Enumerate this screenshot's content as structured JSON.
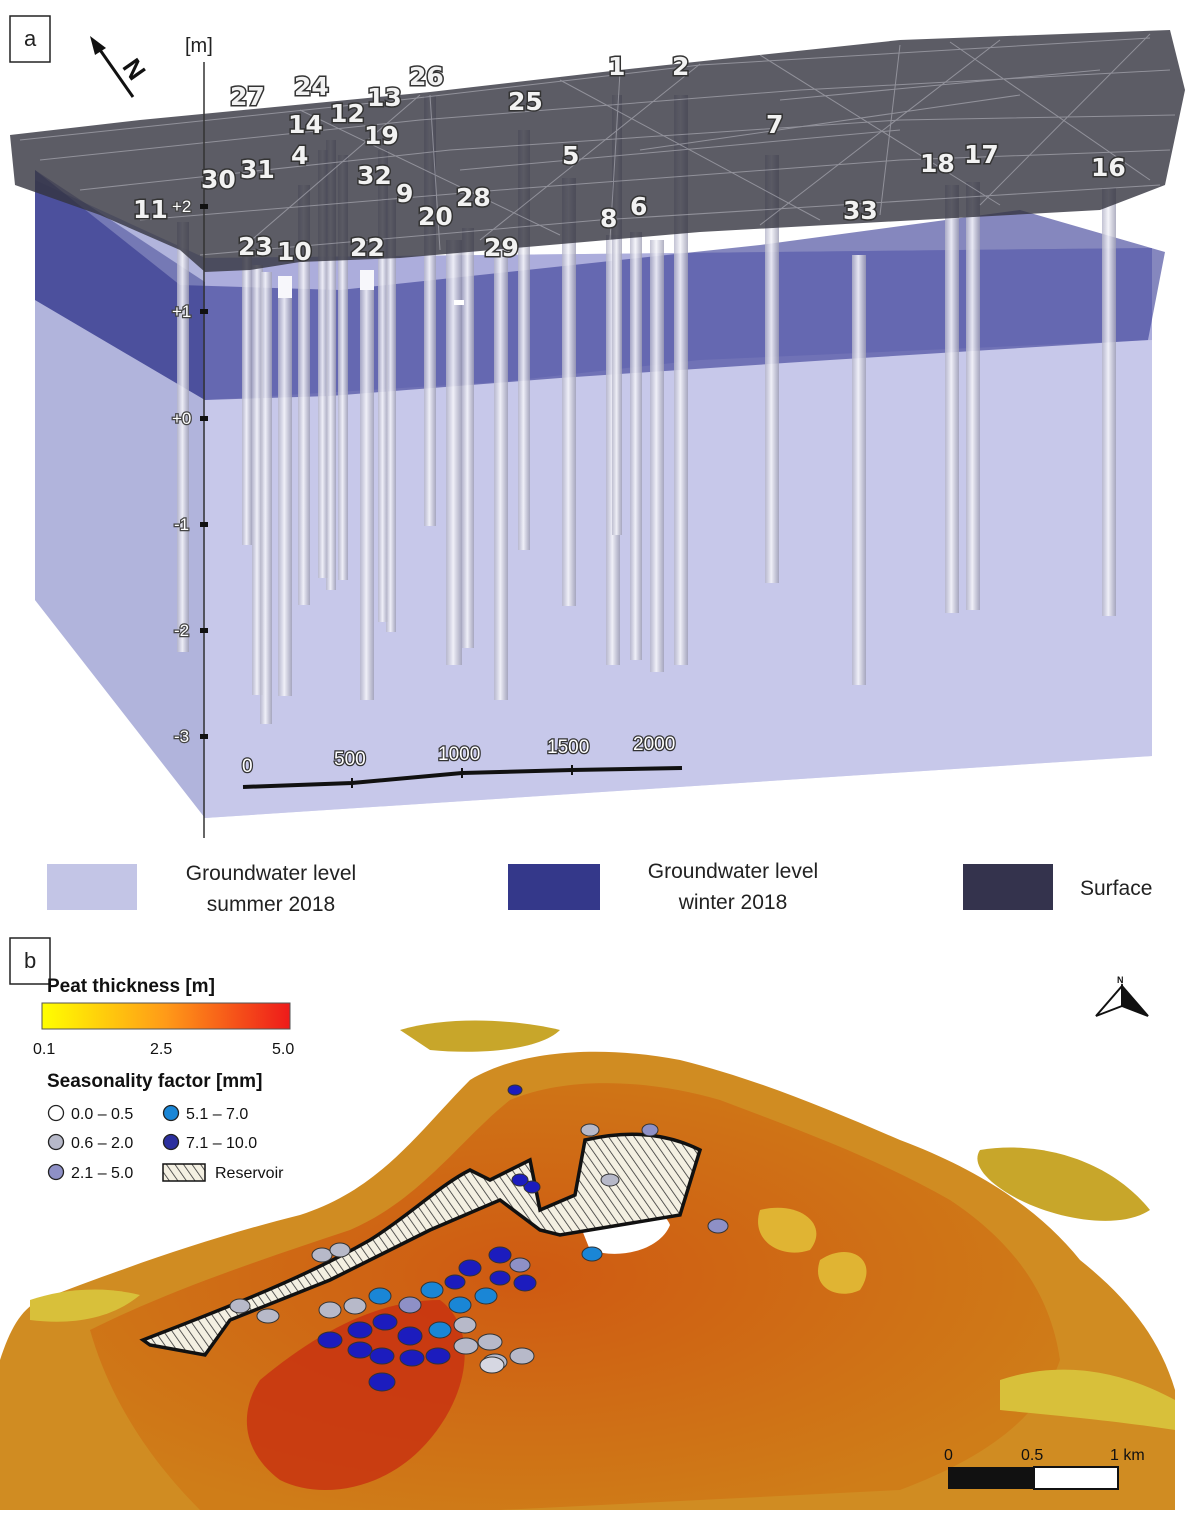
{
  "panel_a": {
    "label": "a",
    "north": "N",
    "unit": "[m]",
    "axis_ticks": [
      "+2",
      "+1",
      "+0",
      "-1",
      "-2",
      "-3"
    ],
    "scale": [
      "0",
      "500",
      "1000",
      "1500",
      "2000"
    ],
    "wells": [
      "27",
      "24",
      "26",
      "12",
      "13",
      "1",
      "2",
      "14",
      "25",
      "19",
      "7",
      "4",
      "5",
      "18",
      "17",
      "30",
      "31",
      "32",
      "9",
      "16",
      "11",
      "28",
      "20",
      "8",
      "6",
      "33",
      "23",
      "10",
      "22",
      "29"
    ],
    "legend": [
      {
        "line1": "Groundwater level",
        "line2": "summer 2018",
        "color": "#c3c5e6"
      },
      {
        "line1": "Groundwater level",
        "line2": "winter 2018",
        "color": "#34388a"
      },
      {
        "line1": "Surface",
        "line2": "",
        "color": "#34334d"
      }
    ]
  },
  "panel_b": {
    "label": "b",
    "peat_title": "Peat thickness [m]",
    "peat_ticks": [
      "0.1",
      "2.5",
      "5.0"
    ],
    "season_title": "Seasonality factor [mm]",
    "classes": [
      {
        "label": "0.0 – 0.5",
        "color": "#ffffff"
      },
      {
        "label": "5.1 – 7.0",
        "color": "#1a86d6"
      },
      {
        "label": "0.6 – 2.0",
        "color": "#b7b9c9"
      },
      {
        "label": "7.1 – 10.0",
        "color": "#2b2f9e"
      },
      {
        "label": "2.1 – 5.0",
        "color": "#8e90c6"
      }
    ],
    "reservoir": "Reservoir",
    "scale": [
      "0",
      "0.5",
      "1 km"
    ],
    "north": "N"
  }
}
